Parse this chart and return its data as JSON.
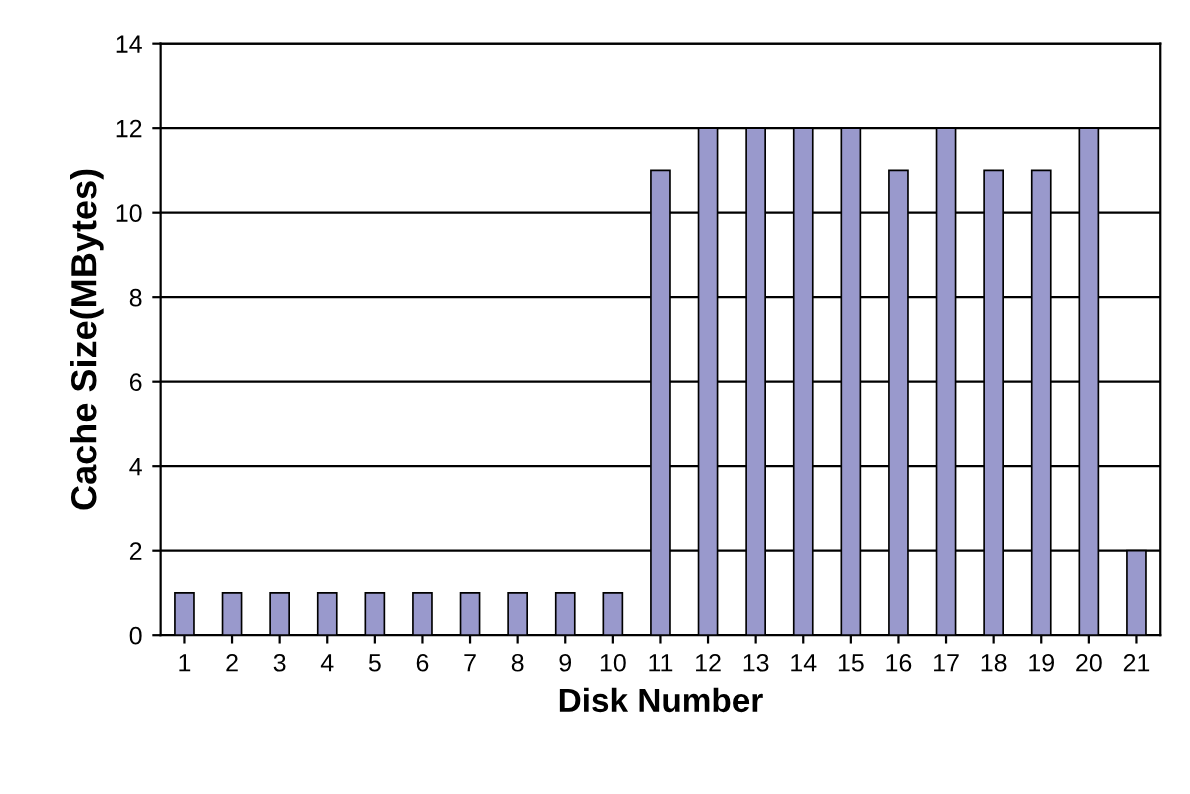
{
  "chart_data": {
    "type": "bar",
    "xlabel": "Disk Number",
    "ylabel": "Cache Size(MBytes)",
    "categories": [
      "1",
      "2",
      "3",
      "4",
      "5",
      "6",
      "7",
      "8",
      "9",
      "10",
      "11",
      "12",
      "13",
      "14",
      "15",
      "16",
      "17",
      "18",
      "19",
      "20",
      "21"
    ],
    "values": [
      1,
      1,
      1,
      1,
      1,
      1,
      1,
      1,
      1,
      1,
      11,
      12,
      12,
      12,
      12,
      11,
      12,
      11,
      11,
      12,
      2
    ],
    "color": "#9999cc",
    "ylim": [
      0,
      14
    ],
    "yticks": [
      0,
      2,
      4,
      6,
      8,
      10,
      12,
      14
    ],
    "grid": "y",
    "legend": false
  }
}
